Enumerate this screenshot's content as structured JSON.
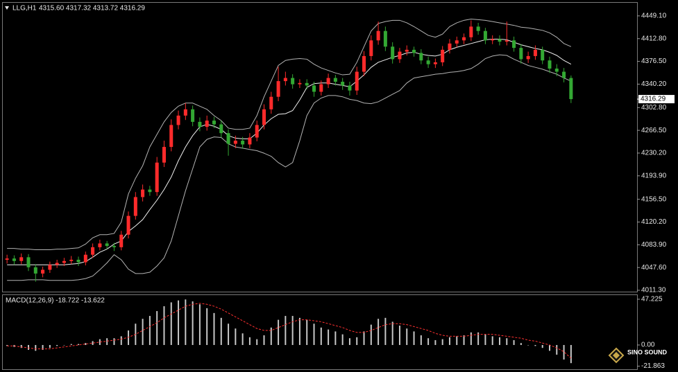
{
  "chart_data": [
    {
      "type": "candlestick",
      "title": "LLG,H1",
      "subtitle": "4315.60 4317.32 4313.72 4316.29",
      "up_color": "#ff2b2b",
      "down_color": "#33a833",
      "last_price": 4316.29,
      "ylim": [
        4008,
        4470
      ],
      "yticks": [
        {
          "value": 4449.1,
          "label": "4449.10"
        },
        {
          "value": 4412.8,
          "label": "4412.80"
        },
        {
          "value": 4376.5,
          "label": "4376.50"
        },
        {
          "value": 4340.2,
          "label": "4340.20"
        },
        {
          "value": 4302.8,
          "label": "4302.80"
        },
        {
          "value": 4266.5,
          "label": "4266.50"
        },
        {
          "value": 4230.2,
          "label": "4230.20"
        },
        {
          "value": 4193.9,
          "label": "4193.90"
        },
        {
          "value": 4156.5,
          "label": "4156.50"
        },
        {
          "value": 4120.2,
          "label": "4120.20"
        },
        {
          "value": 4083.9,
          "label": "4083.90"
        },
        {
          "value": 4047.6,
          "label": "4047.60"
        },
        {
          "value": 4011.3,
          "label": "4011.30"
        }
      ],
      "open": [
        4060,
        4062,
        4058,
        4064,
        4048,
        4038,
        4044,
        4052,
        4055,
        4058,
        4060,
        4056,
        4068,
        4080,
        4086,
        4082,
        4080,
        4100,
        4130,
        4160,
        4172,
        4168,
        4215,
        4240,
        4275,
        4290,
        4300,
        4280,
        4272,
        4282,
        4276,
        4262,
        4245,
        4250,
        4244,
        4255,
        4275,
        4300,
        4320,
        4345,
        4350,
        4340,
        4342,
        4338,
        4328,
        4340,
        4350,
        4344,
        4338,
        4330,
        4360,
        4385,
        4410,
        4425,
        4400,
        4380,
        4392,
        4395,
        4390,
        4378,
        4372,
        4375,
        4395,
        4405,
        4410,
        4415,
        4432,
        4425,
        4410,
        4412,
        4408,
        4410,
        4398,
        4380,
        4385,
        4395,
        4378,
        4365,
        4360,
        4350
      ],
      "high": [
        4068,
        4067,
        4070,
        4069,
        4053,
        4049,
        4057,
        4060,
        4063,
        4066,
        4065,
        4073,
        4086,
        4092,
        4090,
        4087,
        4106,
        4137,
        4168,
        4180,
        4178,
        4224,
        4250,
        4284,
        4298,
        4310,
        4306,
        4287,
        4290,
        4288,
        4282,
        4268,
        4258,
        4256,
        4262,
        4282,
        4308,
        4328,
        4368,
        4360,
        4356,
        4348,
        4348,
        4344,
        4346,
        4357,
        4355,
        4350,
        4344,
        4368,
        4393,
        4418,
        4440,
        4432,
        4407,
        4398,
        4402,
        4400,
        4396,
        4384,
        4381,
        4401,
        4412,
        4416,
        4421,
        4442,
        4438,
        4430,
        4418,
        4418,
        4440,
        4416,
        4404,
        4392,
        4402,
        4400,
        4384,
        4372,
        4366,
        4354
      ],
      "low": [
        4054,
        4052,
        4053,
        4042,
        4025,
        4032,
        4039,
        4047,
        4050,
        4053,
        4050,
        4051,
        4063,
        4075,
        4077,
        4074,
        4075,
        4094,
        4124,
        4153,
        4162,
        4162,
        4208,
        4233,
        4268,
        4283,
        4273,
        4265,
        4266,
        4270,
        4255,
        4226,
        4238,
        4237,
        4238,
        4249,
        4268,
        4293,
        4313,
        4338,
        4333,
        4334,
        4332,
        4320,
        4322,
        4334,
        4338,
        4331,
        4322,
        4323,
        4353,
        4378,
        4403,
        4393,
        4373,
        4374,
        4386,
        4384,
        4372,
        4366,
        4366,
        4369,
        4389,
        4399,
        4404,
        4409,
        4419,
        4404,
        4404,
        4402,
        4402,
        4392,
        4373,
        4374,
        4379,
        4372,
        4358,
        4353,
        4343,
        4310
      ],
      "close": [
        4062,
        4058,
        4064,
        4048,
        4038,
        4044,
        4052,
        4055,
        4058,
        4060,
        4056,
        4068,
        4080,
        4086,
        4082,
        4080,
        4100,
        4130,
        4160,
        4172,
        4168,
        4215,
        4240,
        4275,
        4290,
        4300,
        4280,
        4272,
        4282,
        4276,
        4262,
        4245,
        4250,
        4244,
        4255,
        4275,
        4300,
        4320,
        4345,
        4350,
        4340,
        4342,
        4338,
        4328,
        4340,
        4350,
        4344,
        4338,
        4330,
        4360,
        4385,
        4410,
        4425,
        4400,
        4380,
        4392,
        4395,
        4390,
        4378,
        4372,
        4375,
        4395,
        4405,
        4410,
        4415,
        4432,
        4425,
        4410,
        4412,
        4408,
        4410,
        4398,
        4380,
        4385,
        4395,
        4378,
        4365,
        4360,
        4350,
        4316.29
      ],
      "series": [
        {
          "color": "#b4b4b4",
          "values": [
            4078,
            4078,
            4077,
            4077,
            4076,
            4076,
            4076,
            4077,
            4077,
            4078,
            4079,
            4085,
            4095,
            4100,
            4100,
            4102,
            4120,
            4165,
            4190,
            4210,
            4240,
            4260,
            4280,
            4295,
            4305,
            4310,
            4310,
            4305,
            4300,
            4290,
            4282,
            4270,
            4268,
            4268,
            4270,
            4290,
            4320,
            4345,
            4370,
            4378,
            4380,
            4381,
            4380,
            4372,
            4366,
            4362,
            4358,
            4355,
            4356,
            4375,
            4400,
            4425,
            4437,
            4440,
            4442,
            4442,
            4438,
            4432,
            4425,
            4418,
            4415,
            4420,
            4432,
            4438,
            4442,
            4444,
            4443,
            4442,
            4440,
            4438,
            4436,
            4434,
            4431,
            4430,
            4428,
            4426,
            4422,
            4415,
            4405,
            4400
          ]
        },
        {
          "color": "#f0f0f0",
          "values": [
            4052,
            4052,
            4052,
            4052,
            4052,
            4052,
            4052,
            4052,
            4052,
            4053,
            4054,
            4057,
            4064,
            4072,
            4077,
            4085,
            4090,
            4105,
            4114,
            4124,
            4140,
            4155,
            4172,
            4192,
            4218,
            4240,
            4258,
            4272,
            4276,
            4273,
            4268,
            4258,
            4254,
            4253,
            4253,
            4262,
            4275,
            4285,
            4292,
            4293,
            4298,
            4315,
            4335,
            4341,
            4342,
            4342,
            4340,
            4338,
            4336,
            4345,
            4355,
            4367,
            4375,
            4379,
            4383,
            4386,
            4390,
            4391,
            4388,
            4386,
            4385,
            4388,
            4395,
            4399,
            4402,
            4405,
            4408,
            4411,
            4412,
            4412,
            4411,
            4407,
            4403,
            4400,
            4397,
            4395,
            4391,
            4386,
            4378,
            4372
          ]
        },
        {
          "color": "#b4b4b4",
          "values": [
            4027,
            4027,
            4027,
            4028,
            4028,
            4028,
            4027,
            4027,
            4027,
            4027,
            4028,
            4030,
            4034,
            4044,
            4055,
            4068,
            4060,
            4045,
            4038,
            4038,
            4040,
            4050,
            4063,
            4090,
            4130,
            4170,
            4205,
            4240,
            4252,
            4256,
            4255,
            4245,
            4240,
            4238,
            4236,
            4234,
            4230,
            4225,
            4215,
            4208,
            4215,
            4250,
            4290,
            4310,
            4318,
            4322,
            4322,
            4320,
            4316,
            4314,
            4310,
            4309,
            4312,
            4318,
            4324,
            4330,
            4342,
            4350,
            4352,
            4354,
            4356,
            4357,
            4359,
            4360,
            4362,
            4365,
            4372,
            4381,
            4385,
            4387,
            4386,
            4380,
            4375,
            4370,
            4367,
            4364,
            4360,
            4356,
            4350,
            4345
          ]
        }
      ]
    },
    {
      "type": "macd",
      "title": "MACD(12,26,9) -18.722 -13.622",
      "ylim": [
        -24.3,
        52.2
      ],
      "yticks": [
        47.225,
        {
          "value": 0,
          "label": "0.00"
        },
        -21.863
      ],
      "series": [
        {
          "kind": "bar",
          "color": "#c8c8c8",
          "values": [
            -1,
            -2,
            -3,
            -5,
            -6,
            -5,
            -3,
            -1,
            0,
            1,
            1,
            2,
            4,
            6,
            7,
            7,
            9,
            15,
            22,
            27,
            30,
            35,
            40,
            44,
            46,
            47,
            45,
            42,
            38,
            33,
            28,
            22,
            17,
            12,
            8,
            6,
            10,
            18,
            26,
            30,
            30,
            28,
            26,
            22,
            18,
            16,
            14,
            11,
            7,
            8,
            14,
            21,
            27,
            28,
            24,
            20,
            17,
            14,
            10,
            7,
            5,
            6,
            8,
            9,
            10,
            13,
            13,
            11,
            9,
            8,
            7,
            5,
            2,
            0,
            -1,
            -3,
            -6,
            -10,
            -15,
            -18.722
          ]
        },
        {
          "kind": "line",
          "style": "dashed",
          "color": "#ff3030",
          "values": [
            -1,
            -1,
            -2,
            -3,
            -4,
            -4,
            -4,
            -3,
            -2,
            -1,
            0,
            1,
            2,
            3,
            4,
            5,
            6,
            8,
            11,
            15,
            19,
            23,
            28,
            32,
            36,
            40,
            42,
            43,
            42,
            40,
            37,
            33,
            29,
            25,
            21,
            17,
            15,
            15,
            18,
            21,
            24,
            26,
            26,
            25,
            24,
            22,
            20,
            18,
            15,
            13,
            13,
            15,
            18,
            21,
            22,
            22,
            21,
            19,
            17,
            15,
            12,
            10,
            9,
            9,
            9,
            10,
            11,
            11,
            11,
            10,
            9,
            8,
            7,
            5,
            4,
            2,
            0,
            -3,
            -7,
            -13.622
          ]
        }
      ]
    }
  ],
  "watermark": {
    "title": "SINO SOUND"
  }
}
